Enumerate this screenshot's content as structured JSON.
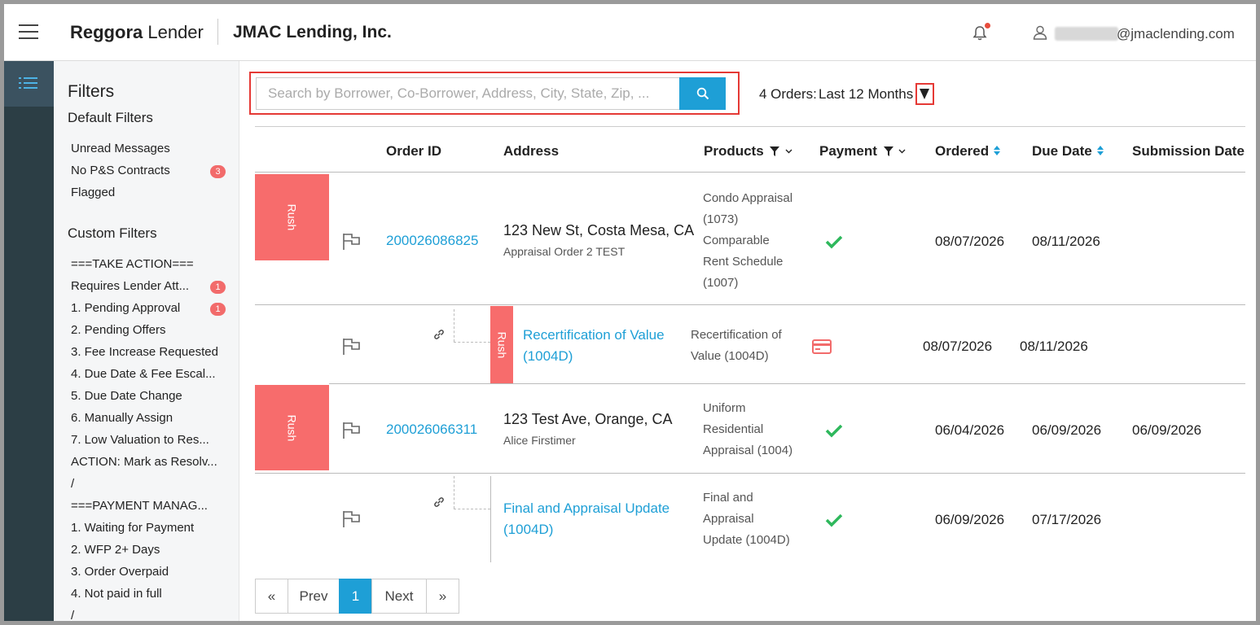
{
  "header": {
    "brand_bold": "Reggora",
    "brand_rest": " Lender",
    "company": "JMAC Lending, Inc.",
    "user_domain": "@jmaclending.com",
    "icons": [
      "menu-icon",
      "bell-icon",
      "user-icon"
    ]
  },
  "sidebar": {
    "title": "Filters",
    "default_title": "Default Filters",
    "default_items": [
      {
        "label": "Unread Messages"
      },
      {
        "label": "No P&S Contracts",
        "badge": "3"
      },
      {
        "label": "Flagged"
      }
    ],
    "custom_title": "Custom Filters",
    "custom_items": [
      {
        "label": "===TAKE ACTION==="
      },
      {
        "label": "Requires Lender Att...",
        "badge": "1"
      },
      {
        "label": "1. Pending Approval",
        "badge": "1"
      },
      {
        "label": "2. Pending Offers"
      },
      {
        "label": "3. Fee Increase Requested"
      },
      {
        "label": "4. Due Date & Fee Escal..."
      },
      {
        "label": "5. Due Date Change"
      },
      {
        "label": "6. Manually Assign"
      },
      {
        "label": "7. Low Valuation to Res..."
      },
      {
        "label": "ACTION: Mark as Resolv..."
      },
      {
        "label": "/"
      },
      {
        "label": "===PAYMENT MANAG..."
      },
      {
        "label": "1. Waiting for Payment"
      },
      {
        "label": "2. WFP 2+ Days"
      },
      {
        "label": "3. Order Overpaid"
      },
      {
        "label": "4. Not paid in full"
      },
      {
        "label": "/"
      }
    ]
  },
  "search": {
    "placeholder": "Search by Borrower, Co-Borrower, Address, City, State, Zip, ..."
  },
  "orders_summary": {
    "count_label": "4 Orders:",
    "range": "Last 12 Months"
  },
  "table": {
    "columns": {
      "order_id": "Order ID",
      "address": "Address",
      "products": "Products",
      "payment": "Payment",
      "ordered": "Ordered",
      "due_date": "Due Date",
      "submission_date": "Submission Date"
    },
    "rows": [
      {
        "rush": "Rush",
        "order_id": "200026086825",
        "address": "123 New St, Costa Mesa, CA",
        "address_sub": "Appraisal Order 2 TEST",
        "products": [
          "Condo Appraisal",
          "(1073)",
          "Comparable",
          "Rent Schedule",
          "(1007)"
        ],
        "payment": "paid",
        "ordered": "08/07/2026",
        "due": "08/11/2026",
        "submitted": ""
      },
      {
        "rush": "Rush",
        "child_title": [
          "Recertification of Value",
          "(1004D)"
        ],
        "products": [
          "Recertification of",
          "Value (1004D)"
        ],
        "payment": "card",
        "ordered": "08/07/2026",
        "due": "08/11/2026",
        "submitted": ""
      },
      {
        "rush": "Rush",
        "order_id": "200026066311",
        "address": "123 Test Ave, Orange, CA",
        "address_sub": "Alice Firstimer",
        "products": [
          "Uniform",
          "Residential",
          "Appraisal (1004)"
        ],
        "payment": "paid",
        "ordered": "06/04/2026",
        "due": "06/09/2026",
        "submitted": "06/09/2026"
      },
      {
        "child_title": [
          "Final and Appraisal Update",
          "(1004D)"
        ],
        "products": [
          "Final and",
          "Appraisal",
          "Update (1004D)"
        ],
        "payment": "paid",
        "ordered": "06/09/2026",
        "due": "07/17/2026",
        "submitted": ""
      }
    ]
  },
  "pagination": {
    "first": "«",
    "prev": "Prev",
    "current": "1",
    "next": "Next",
    "last": "»"
  },
  "colors": {
    "accent": "#1e9fd6",
    "rush": "#f76c6c",
    "highlight": "#e53935",
    "check": "#2eb85c",
    "rail": "#2c3e45"
  }
}
